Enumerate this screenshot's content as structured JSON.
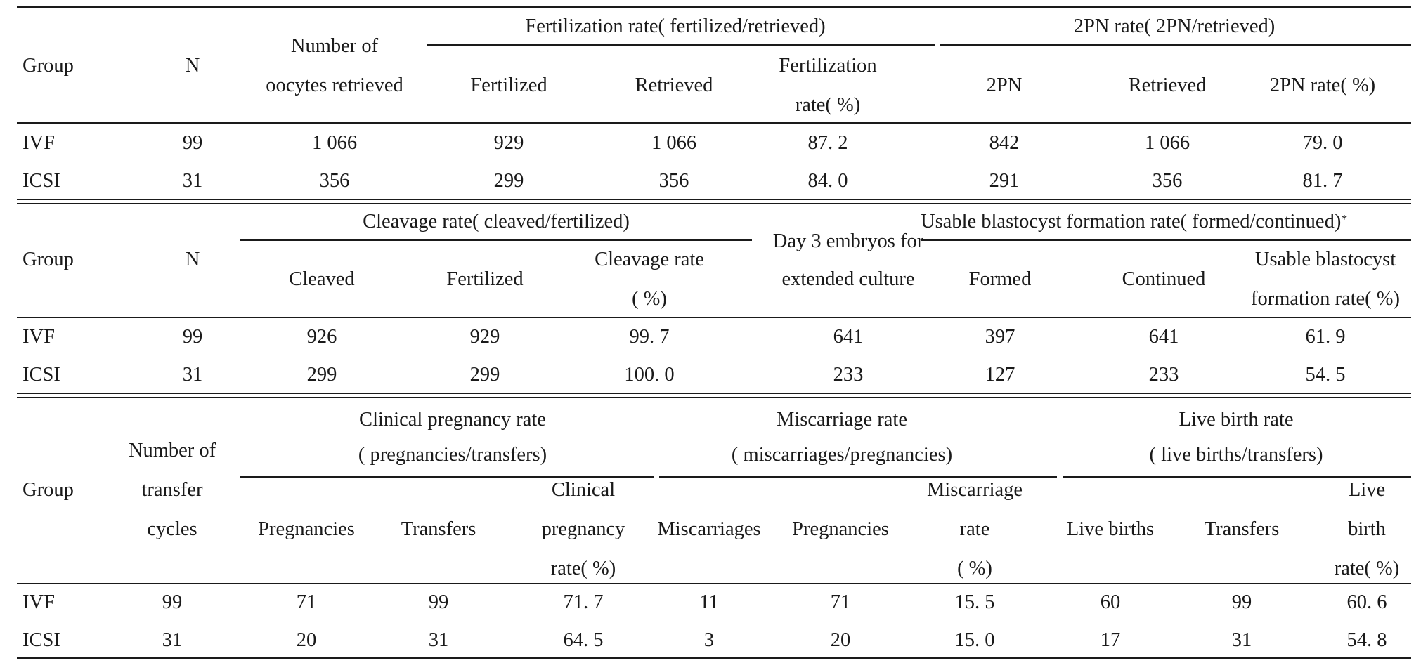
{
  "section1": {
    "header": {
      "group": "Group",
      "n": "N",
      "oocytes_line1": "Number of",
      "oocytes_line2": "oocytes retrieved",
      "fert_span": "Fertilization rate( fertilized/retrieved)",
      "fertilized": "Fertilized",
      "retrieved": "Retrieved",
      "fert_rate_line1": "Fertilization",
      "fert_rate_line2": "rate( %)",
      "pn_span": "2PN rate( 2PN/retrieved)",
      "pn": "2PN",
      "pn_retrieved": "Retrieved",
      "pn_rate": "2PN rate( %)"
    },
    "rows": [
      [
        "IVF",
        "99",
        "1 066",
        "929",
        "1 066",
        "87. 2",
        "842",
        "1 066",
        "79. 0"
      ],
      [
        "ICSI",
        "31",
        "356",
        "299",
        "356",
        "84. 0",
        "291",
        "356",
        "81. 7"
      ]
    ]
  },
  "section2": {
    "header": {
      "group": "Group",
      "n": "N",
      "cleav_span": "Cleavage rate( cleaved/fertilized)",
      "cleaved": "Cleaved",
      "fertilized": "Fertilized",
      "cleav_rate_line1": "Cleavage rate",
      "cleav_rate_line2": "( %)",
      "day3_line1": "Day 3 embryos for",
      "day3_line2": "extended culture",
      "blast_span": "Usable blastocyst formation rate( formed/continued)",
      "blast_mark": "*",
      "formed": "Formed",
      "continued": "Continued",
      "blast_rate_line1": "Usable blastocyst",
      "blast_rate_line2": "formation rate( %)"
    },
    "rows": [
      [
        "IVF",
        "99",
        "926",
        "929",
        "99. 7",
        "641",
        "397",
        "641",
        "61. 9"
      ],
      [
        "ICSI",
        "31",
        "299",
        "299",
        "100. 0",
        "233",
        "127",
        "233",
        "54. 5"
      ]
    ]
  },
  "section3": {
    "header": {
      "group": "Group",
      "cycles_line1": "Number of",
      "cycles_line2": "transfer",
      "cycles_line3": "cycles",
      "preg_span_line1": "Clinical pregnancy rate",
      "preg_span_line2": "( pregnancies/transfers)",
      "pregnancies": "Pregnancies",
      "transfers": "Transfers",
      "preg_rate_line1": "Clinical",
      "preg_rate_line2": "pregnancy",
      "preg_rate_line3": "rate( %)",
      "mis_span_line1": "Miscarriage rate",
      "mis_span_line2": "( miscarriages/pregnancies)",
      "miscarriages": "Miscarriages",
      "mis_pregnancies": "Pregnancies",
      "mis_rate_line1": "Miscarriage",
      "mis_rate_line2": "rate",
      "mis_rate_line3": "( %)",
      "live_span_line1": "Live birth rate",
      "live_span_line2": "( live births/transfers)",
      "live_births": "Live births",
      "live_transfers": "Transfers",
      "live_rate_line1": "Live",
      "live_rate_line2": "birth",
      "live_rate_line3": "rate( %)"
    },
    "rows": [
      [
        "IVF",
        "99",
        "71",
        "99",
        "71. 7",
        "11",
        "71",
        "15. 5",
        "60",
        "99",
        "60. 6"
      ],
      [
        "ICSI",
        "31",
        "20",
        "31",
        "64. 5",
        "3",
        "20",
        "15. 0",
        "17",
        "31",
        "54. 8"
      ]
    ]
  }
}
